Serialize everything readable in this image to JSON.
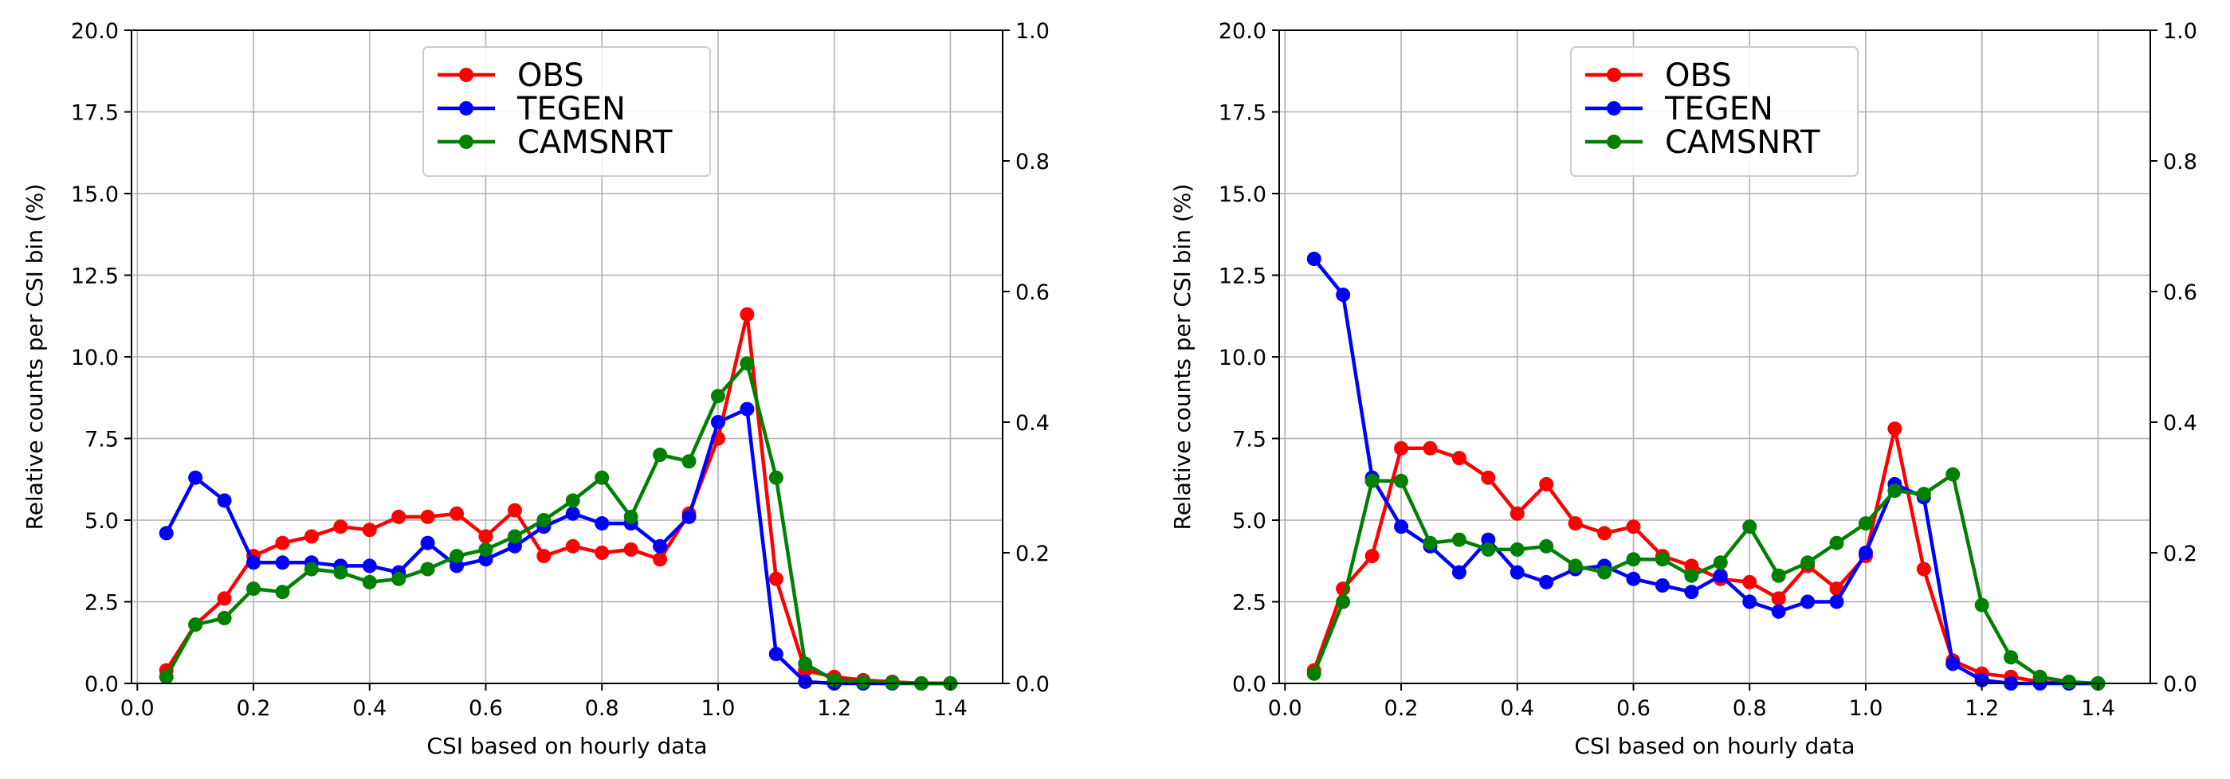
{
  "chart_data": [
    {
      "type": "line",
      "xlabel": "CSI based on hourly data",
      "ylabel": "Relative counts per CSI bin (%)",
      "xlim": [
        -0.01,
        1.49
      ],
      "ylim": [
        0,
        20
      ],
      "y2lim": [
        0,
        1
      ],
      "xticks": [
        "0.0",
        "0.2",
        "0.4",
        "0.6",
        "0.8",
        "1.0",
        "1.2",
        "1.4"
      ],
      "yticks": [
        "0.0",
        "2.5",
        "5.0",
        "7.5",
        "10.0",
        "12.5",
        "15.0",
        "17.5",
        "20.0"
      ],
      "y2ticks": [
        "0.0",
        "0.2",
        "0.4",
        "0.6",
        "0.8",
        "1.0"
      ],
      "grid": true,
      "legend_position": "upper-center",
      "x": [
        0.05,
        0.1,
        0.15,
        0.2,
        0.25,
        0.3,
        0.35,
        0.4,
        0.45,
        0.5,
        0.55,
        0.6,
        0.65,
        0.7,
        0.75,
        0.8,
        0.85,
        0.9,
        0.95,
        1.0,
        1.05,
        1.1,
        1.15,
        1.2,
        1.25,
        1.3,
        1.35,
        1.4
      ],
      "series": [
        {
          "name": "OBS",
          "color": "#ff0000",
          "values": [
            0.4,
            1.8,
            2.6,
            3.9,
            4.3,
            4.5,
            4.8,
            4.7,
            5.1,
            5.1,
            5.2,
            4.5,
            5.3,
            3.9,
            4.2,
            4.0,
            4.1,
            3.8,
            5.2,
            7.5,
            11.3,
            3.2,
            0.4,
            0.2,
            0.1,
            0.05,
            0.0,
            0.0
          ]
        },
        {
          "name": "TEGEN",
          "color": "#0000ff",
          "values": [
            4.6,
            6.3,
            5.6,
            3.7,
            3.7,
            3.7,
            3.6,
            3.6,
            3.4,
            4.3,
            3.6,
            3.8,
            4.2,
            4.8,
            5.2,
            4.9,
            4.9,
            4.2,
            5.1,
            8.0,
            8.4,
            0.9,
            0.05,
            0.0,
            0.0,
            0.0,
            0.0,
            0.0
          ]
        },
        {
          "name": "CAMSNRT",
          "color": "#008000",
          "values": [
            0.2,
            1.8,
            2.0,
            2.9,
            2.8,
            3.5,
            3.4,
            3.1,
            3.2,
            3.5,
            3.9,
            4.1,
            4.5,
            5.0,
            5.6,
            6.3,
            5.1,
            7.0,
            6.8,
            8.8,
            9.8,
            6.3,
            0.6,
            0.1,
            0.05,
            0.02,
            0.0,
            0.0
          ]
        }
      ]
    },
    {
      "type": "line",
      "xlabel": "CSI based on hourly data",
      "ylabel": "Relative counts per CSI bin (%)",
      "xlim": [
        -0.01,
        1.49
      ],
      "ylim": [
        0,
        20
      ],
      "y2lim": [
        0,
        1
      ],
      "xticks": [
        "0.0",
        "0.2",
        "0.4",
        "0.6",
        "0.8",
        "1.0",
        "1.2",
        "1.4"
      ],
      "yticks": [
        "0.0",
        "2.5",
        "5.0",
        "7.5",
        "10.0",
        "12.5",
        "15.0",
        "17.5",
        "20.0"
      ],
      "y2ticks": [
        "0.0",
        "0.2",
        "0.4",
        "0.6",
        "0.8",
        "1.0"
      ],
      "grid": true,
      "legend_position": "upper-center",
      "x": [
        0.05,
        0.1,
        0.15,
        0.2,
        0.25,
        0.3,
        0.35,
        0.4,
        0.45,
        0.5,
        0.55,
        0.6,
        0.65,
        0.7,
        0.75,
        0.8,
        0.85,
        0.9,
        0.95,
        1.0,
        1.05,
        1.1,
        1.15,
        1.2,
        1.25,
        1.3,
        1.35,
        1.4
      ],
      "series": [
        {
          "name": "OBS",
          "color": "#ff0000",
          "values": [
            0.4,
            2.9,
            3.9,
            7.2,
            7.2,
            6.9,
            6.3,
            5.2,
            6.1,
            4.9,
            4.6,
            4.8,
            3.9,
            3.6,
            3.2,
            3.1,
            2.6,
            3.6,
            2.9,
            3.9,
            7.8,
            3.5,
            0.7,
            0.3,
            0.2,
            0.05,
            0.0,
            0.0
          ]
        },
        {
          "name": "TEGEN",
          "color": "#0000ff",
          "values": [
            13.0,
            11.9,
            6.3,
            4.8,
            4.2,
            3.4,
            4.4,
            3.4,
            3.1,
            3.5,
            3.6,
            3.2,
            3.0,
            2.8,
            3.3,
            2.5,
            2.2,
            2.5,
            2.5,
            4.0,
            6.1,
            5.7,
            0.6,
            0.1,
            0.0,
            0.0,
            0.0,
            0.0
          ]
        },
        {
          "name": "CAMSNRT",
          "color": "#008000",
          "values": [
            0.3,
            2.5,
            6.2,
            6.2,
            4.3,
            4.4,
            4.1,
            4.1,
            4.2,
            3.6,
            3.4,
            3.8,
            3.8,
            3.3,
            3.7,
            4.8,
            3.3,
            3.7,
            4.3,
            4.9,
            5.9,
            5.8,
            6.4,
            2.4,
            0.8,
            0.2,
            0.05,
            0.0
          ]
        }
      ]
    }
  ]
}
